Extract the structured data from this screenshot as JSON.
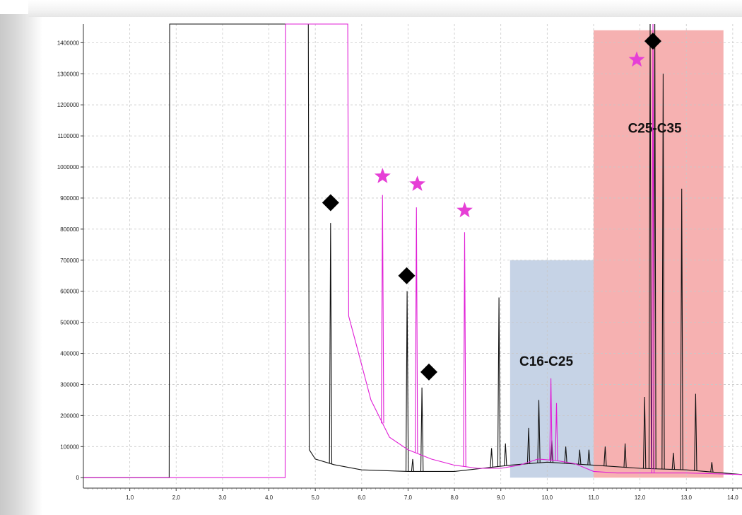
{
  "chart_data": {
    "type": "line",
    "title": "",
    "xlabel": "",
    "ylabel": "",
    "xlim": [
      0.0,
      14.2
    ],
    "ylim": [
      -20000,
      1460000
    ],
    "grid": true,
    "x_ticks": [
      1.0,
      2.0,
      3.0,
      4.0,
      5.0,
      6.0,
      7.0,
      8.0,
      9.0,
      10.0,
      11.0,
      12.0,
      13.0,
      14.0
    ],
    "x_tick_labels": [
      "1,0",
      "2,0",
      "3,0",
      "4,0",
      "5,0",
      "6,0",
      "7,0",
      "8,0",
      "9,0",
      "10,0",
      "11,0",
      "12,0",
      "13,0",
      "14,0"
    ],
    "y_ticks": [
      0,
      100000,
      200000,
      300000,
      400000,
      500000,
      600000,
      700000,
      800000,
      900000,
      1000000,
      1100000,
      1200000,
      1300000,
      1400000
    ],
    "y_tick_labels": [
      "0",
      "100000",
      "200000",
      "300000",
      "400000",
      "500000",
      "600000",
      "700000",
      "800000",
      "900000",
      "1000000",
      "1100000",
      "1200000",
      "1300000",
      "1400000"
    ],
    "shaded_regions": [
      {
        "label": "C16-C25",
        "x_from": 9.2,
        "x_to": 11.0,
        "y_to": 700000,
        "color": "#bccbe2",
        "label_x": 9.98,
        "label_y": 360000
      },
      {
        "label": "C25-C35",
        "x_from": 11.0,
        "x_to": 13.8,
        "y_to": 1440000,
        "color": "#f5a3a3",
        "label_x": 12.32,
        "label_y": 1110000
      }
    ],
    "series": [
      {
        "color": "#111111",
        "baseline": [
          [
            0.0,
            0
          ],
          [
            1.85,
            0
          ],
          [
            1.86,
            1460000
          ],
          [
            4.85,
            1460000
          ],
          [
            4.87,
            90000
          ],
          [
            5.0,
            60000
          ],
          [
            5.4,
            42000
          ],
          [
            6.0,
            25000
          ],
          [
            7.0,
            20000
          ],
          [
            8.0,
            20000
          ],
          [
            9.2,
            40000
          ],
          [
            10.0,
            50000
          ],
          [
            11.0,
            40000
          ],
          [
            12.0,
            30000
          ],
          [
            13.0,
            25000
          ],
          [
            14.2,
            10000
          ]
        ],
        "peaks": [
          [
            5.33,
            820000
          ],
          [
            6.98,
            600000
          ],
          [
            7.3,
            290000
          ],
          [
            7.1,
            60000
          ],
          [
            8.96,
            580000
          ],
          [
            8.8,
            95000
          ],
          [
            9.1,
            110000
          ],
          [
            9.6,
            160000
          ],
          [
            9.82,
            250000
          ],
          [
            10.1,
            120000
          ],
          [
            10.4,
            100000
          ],
          [
            10.7,
            90000
          ],
          [
            10.9,
            90000
          ],
          [
            11.25,
            100000
          ],
          [
            11.68,
            110000
          ],
          [
            12.1,
            260000
          ],
          [
            12.22,
            1460000
          ],
          [
            12.32,
            1460000
          ],
          [
            12.5,
            1300000
          ],
          [
            12.72,
            80000
          ],
          [
            12.9,
            930000
          ],
          [
            13.2,
            270000
          ],
          [
            13.55,
            50000
          ]
        ]
      },
      {
        "color": "#e01fd6",
        "baseline": [
          [
            0.0,
            0
          ],
          [
            4.35,
            0
          ],
          [
            4.36,
            1460000
          ],
          [
            5.7,
            1460000
          ],
          [
            5.72,
            520000
          ],
          [
            5.9,
            420000
          ],
          [
            6.2,
            250000
          ],
          [
            6.6,
            130000
          ],
          [
            7.0,
            90000
          ],
          [
            7.5,
            60000
          ],
          [
            8.0,
            40000
          ],
          [
            8.5,
            30000
          ],
          [
            9.0,
            30000
          ],
          [
            9.4,
            40000
          ],
          [
            9.8,
            60000
          ],
          [
            10.2,
            55000
          ],
          [
            10.6,
            45000
          ],
          [
            11.0,
            20000
          ],
          [
            11.5,
            15000
          ],
          [
            12.0,
            15000
          ],
          [
            13.0,
            15000
          ],
          [
            14.2,
            10000
          ]
        ],
        "peaks": [
          [
            6.45,
            910000
          ],
          [
            7.18,
            870000
          ],
          [
            8.22,
            790000
          ],
          [
            10.08,
            320000
          ],
          [
            10.2,
            240000
          ],
          [
            12.28,
            1460000
          ]
        ]
      }
    ],
    "markers": [
      {
        "type": "diamond",
        "x": 5.33,
        "y": 885000,
        "color": "#000000"
      },
      {
        "type": "diamond",
        "x": 6.97,
        "y": 650000,
        "color": "#000000"
      },
      {
        "type": "diamond",
        "x": 7.45,
        "y": 340000,
        "color": "#000000"
      },
      {
        "type": "diamond",
        "x": 12.28,
        "y": 1405000,
        "color": "#000000"
      },
      {
        "type": "star",
        "x": 6.45,
        "y": 970000,
        "color": "#e63fd6"
      },
      {
        "type": "star",
        "x": 7.2,
        "y": 945000,
        "color": "#e63fd6"
      },
      {
        "type": "star",
        "x": 8.22,
        "y": 860000,
        "color": "#e63fd6"
      },
      {
        "type": "star",
        "x": 11.93,
        "y": 1345000,
        "color": "#e63fd6"
      }
    ]
  }
}
